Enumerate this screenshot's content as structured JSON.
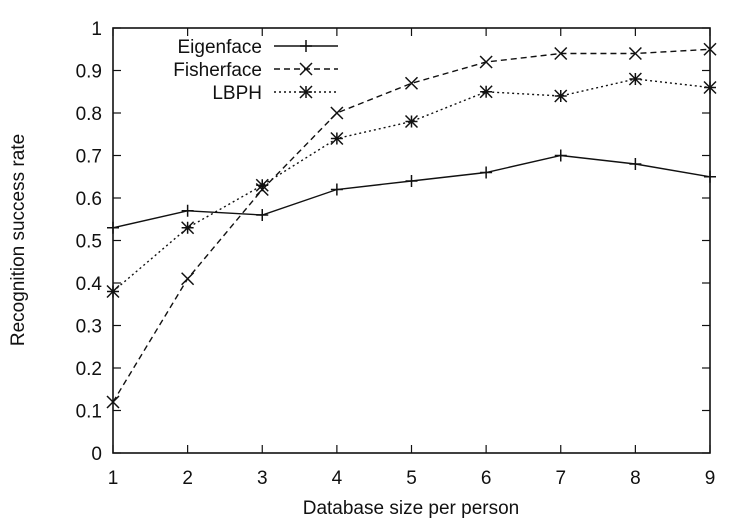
{
  "chart_data": {
    "type": "line",
    "title": "",
    "xlabel": "Database size per person",
    "ylabel": "Recognition success rate",
    "x": [
      1,
      2,
      3,
      4,
      5,
      6,
      7,
      8,
      9
    ],
    "xlim": [
      1,
      9
    ],
    "ylim": [
      0,
      1
    ],
    "xticks": [
      "1",
      "2",
      "3",
      "4",
      "5",
      "6",
      "7",
      "8",
      "9"
    ],
    "yticks": [
      "0",
      "0.1",
      "0.2",
      "0.3",
      "0.4",
      "0.5",
      "0.6",
      "0.7",
      "0.8",
      "0.9",
      "1"
    ],
    "grid": false,
    "legend_position": "top-left",
    "series": [
      {
        "name": "Eigenface",
        "marker": "plus",
        "dash": "solid",
        "values": [
          0.53,
          0.57,
          0.56,
          0.62,
          0.64,
          0.66,
          0.7,
          0.68,
          0.65
        ]
      },
      {
        "name": "Fisherface",
        "marker": "cross",
        "dash": "dashed",
        "values": [
          0.12,
          0.41,
          0.62,
          0.8,
          0.87,
          0.92,
          0.94,
          0.94,
          0.95
        ]
      },
      {
        "name": "LBPH",
        "marker": "star",
        "dash": "dotted",
        "values": [
          0.38,
          0.53,
          0.63,
          0.74,
          0.78,
          0.85,
          0.84,
          0.88,
          0.86
        ]
      }
    ]
  }
}
